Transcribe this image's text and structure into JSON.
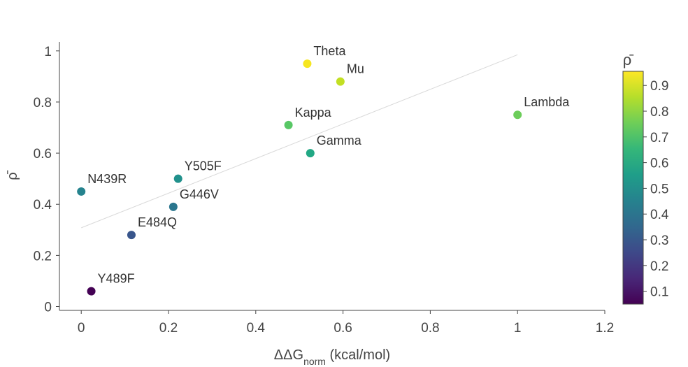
{
  "chart_data": {
    "type": "scatter",
    "xlabel_main": "ΔΔG",
    "xlabel_sub": "norm",
    "xlabel_unit": " (kcal/mol)",
    "ylabel": "ρ̄",
    "xlim": [
      -0.05,
      1.2
    ],
    "ylim": [
      -0.015,
      1.035
    ],
    "xticks": [
      0,
      0.2,
      0.4,
      0.6,
      0.8,
      1,
      1.2
    ],
    "xtick_labels": [
      "0",
      "0.2",
      "0.4",
      "0.6",
      "0.8",
      "1",
      "1.2"
    ],
    "yticks": [
      0,
      0.2,
      0.4,
      0.6,
      0.8,
      1
    ],
    "ytick_labels": [
      "0",
      "0.2",
      "0.4",
      "0.6",
      "0.8",
      "1"
    ],
    "grid": false,
    "points": [
      {
        "label": "Theta",
        "x": 0.518,
        "y": 0.95,
        "color": "#f6e620"
      },
      {
        "label": "Mu",
        "x": 0.594,
        "y": 0.88,
        "color": "#c2df23"
      },
      {
        "label": "Lambda",
        "x": 1.0,
        "y": 0.75,
        "color": "#6ccd5a"
      },
      {
        "label": "Kappa",
        "x": 0.475,
        "y": 0.71,
        "color": "#58c765"
      },
      {
        "label": "Gamma",
        "x": 0.525,
        "y": 0.6,
        "color": "#22a884"
      },
      {
        "label": "Y505F",
        "x": 0.222,
        "y": 0.5,
        "color": "#21918c"
      },
      {
        "label": "N439R",
        "x": 0.0,
        "y": 0.45,
        "color": "#25838e"
      },
      {
        "label": "G446V",
        "x": 0.211,
        "y": 0.39,
        "color": "#2a768e"
      },
      {
        "label": "E484Q",
        "x": 0.115,
        "y": 0.28,
        "color": "#39568c"
      },
      {
        "label": "Y489F",
        "x": 0.023,
        "y": 0.06,
        "color": "#440154"
      }
    ],
    "trendline": {
      "x": [
        0.0,
        1.0
      ],
      "y": [
        0.308,
        0.985
      ],
      "color": "#d9d9d9"
    },
    "colorbar": {
      "title": "ρ̄",
      "range": [
        0.05,
        0.955
      ],
      "ticks": [
        0.1,
        0.2,
        0.3,
        0.4,
        0.5,
        0.6,
        0.7,
        0.8,
        0.9
      ],
      "tick_labels": [
        "0.1",
        "0.2",
        "0.3",
        "0.4",
        "0.5",
        "0.6",
        "0.7",
        "0.8",
        "0.9"
      ],
      "colormap": "viridis",
      "stops": [
        "#440154",
        "#482878",
        "#3e4989",
        "#31688e",
        "#26828e",
        "#1f9e89",
        "#35b779",
        "#6ece58",
        "#b5de2b",
        "#fde725"
      ]
    }
  }
}
